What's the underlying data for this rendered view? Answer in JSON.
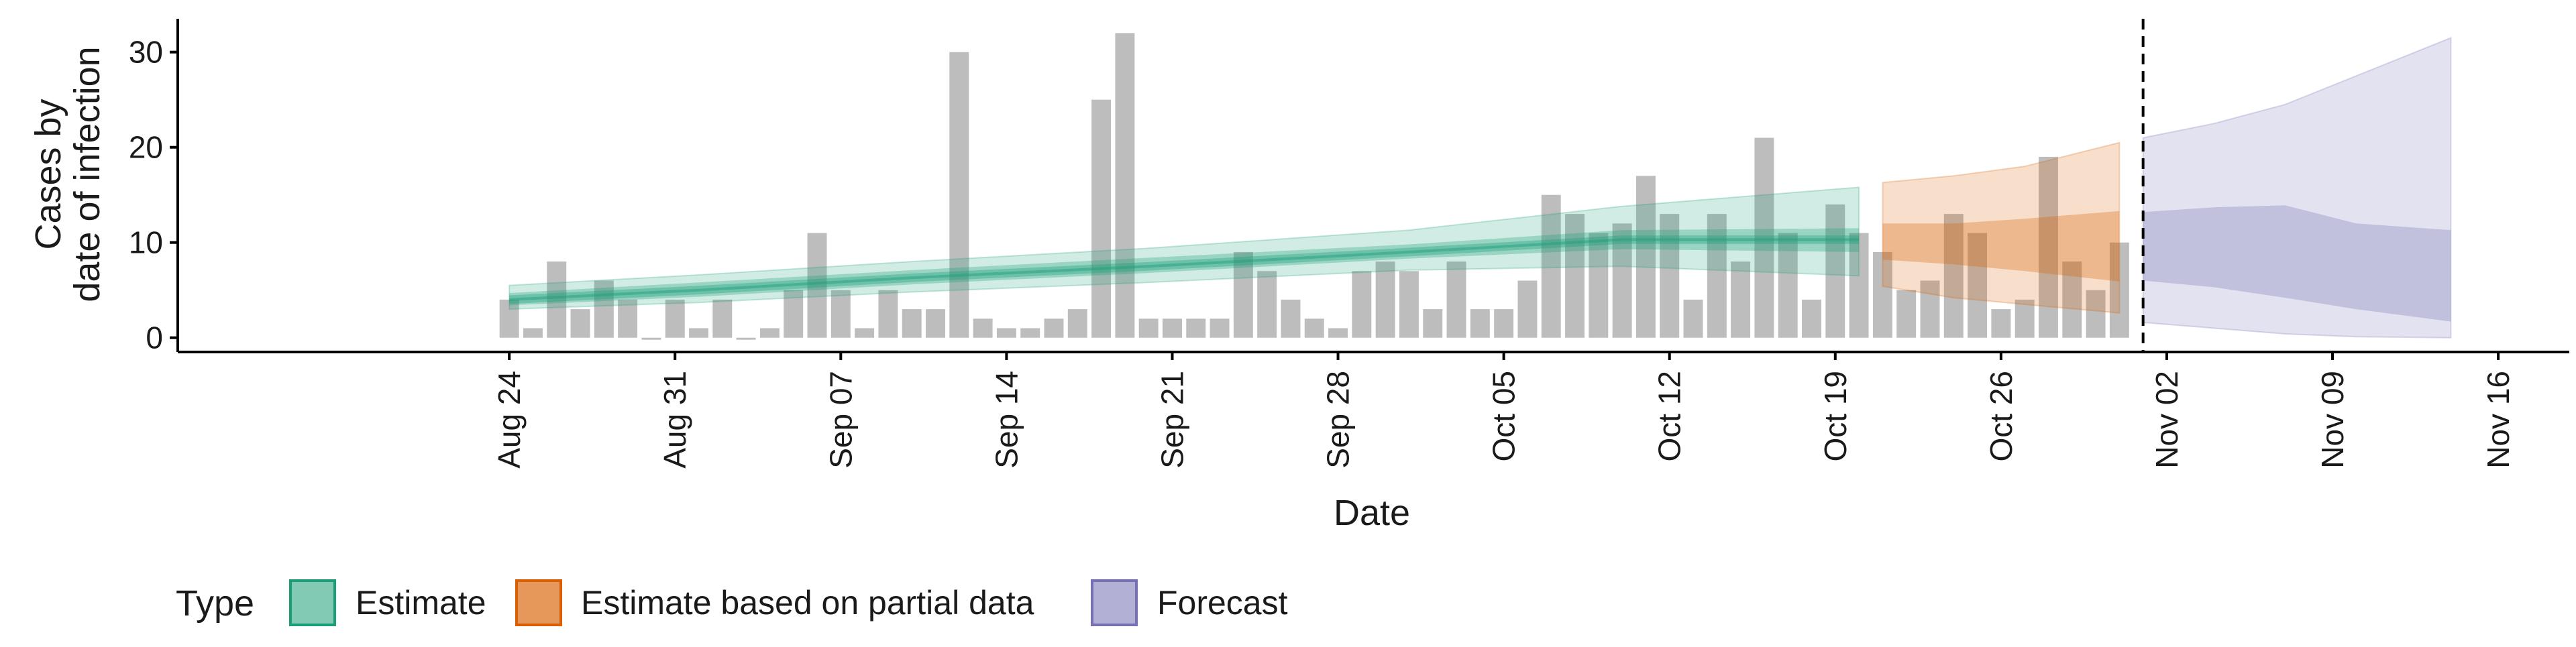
{
  "chart_data": {
    "type": "bar",
    "xlabel": "Date",
    "ylabel_lines": [
      "Cases by",
      "date of infection"
    ],
    "ylim": [
      -1.5,
      33.5
    ],
    "yticks": [
      0,
      10,
      20,
      30
    ],
    "x_range": [
      "2020-08-10",
      "2020-11-19"
    ],
    "xticks": [
      {
        "date": "2020-08-24",
        "label": "Aug 24"
      },
      {
        "date": "2020-08-31",
        "label": "Aug 31"
      },
      {
        "date": "2020-09-07",
        "label": "Sep 07"
      },
      {
        "date": "2020-09-14",
        "label": "Sep 14"
      },
      {
        "date": "2020-09-21",
        "label": "Sep 21"
      },
      {
        "date": "2020-09-28",
        "label": "Sep 28"
      },
      {
        "date": "2020-10-05",
        "label": "Oct 05"
      },
      {
        "date": "2020-10-12",
        "label": "Oct 12"
      },
      {
        "date": "2020-10-19",
        "label": "Oct 19"
      },
      {
        "date": "2020-10-26",
        "label": "Oct 26"
      },
      {
        "date": "2020-11-02",
        "label": "Nov 02"
      },
      {
        "date": "2020-11-09",
        "label": "Nov 09"
      },
      {
        "date": "2020-11-16",
        "label": "Nov 16"
      }
    ],
    "bars": {
      "start_date": "2020-08-24",
      "color": "#bdbdbd",
      "values": [
        4,
        1,
        8,
        3,
        6,
        4,
        0,
        4,
        1,
        4,
        0,
        1,
        5,
        11,
        5,
        1,
        5,
        3,
        3,
        30,
        2,
        1,
        1,
        2,
        3,
        25,
        32,
        2,
        2,
        2,
        2,
        9,
        7,
        4,
        2,
        1,
        7,
        8,
        7,
        3,
        8,
        3,
        3,
        6,
        15,
        13,
        11,
        12,
        17,
        13,
        4,
        13,
        8,
        21,
        11,
        4,
        14,
        11,
        9,
        5,
        6,
        13,
        11,
        3,
        4,
        19,
        8,
        5,
        10
      ]
    },
    "cutoff_date": "2020-11-01",
    "legend_title": "Type",
    "legend_position": "bottom",
    "series": [
      {
        "name": "Estimate",
        "color": "#1b9e77",
        "x": [
          "2020-08-24",
          "2020-09-01",
          "2020-09-10",
          "2020-09-20",
          "2020-10-01",
          "2020-10-10",
          "2020-10-20"
        ],
        "median": [
          4.0,
          5.0,
          6.3,
          7.5,
          9.0,
          10.3,
          10.3
        ],
        "lower_50": [
          3.4,
          4.3,
          5.6,
          6.8,
          8.3,
          9.3,
          9.0
        ],
        "upper_50": [
          4.7,
          5.8,
          7.1,
          8.4,
          9.8,
          11.3,
          11.5
        ],
        "lower_90": [
          3.0,
          3.7,
          4.8,
          5.8,
          7.1,
          7.5,
          6.5
        ],
        "upper_90": [
          5.5,
          6.6,
          8.0,
          9.4,
          11.3,
          13.8,
          15.8
        ]
      },
      {
        "name": "Estimate based on partial data",
        "color": "#d95f02",
        "x": [
          "2020-10-21",
          "2020-10-24",
          "2020-10-27",
          "2020-10-31"
        ],
        "median": [
          10.0,
          9.7,
          9.2,
          8.3
        ],
        "lower_50": [
          8.2,
          7.7,
          7.0,
          5.9
        ],
        "upper_50": [
          12.0,
          12.0,
          12.5,
          13.3
        ],
        "lower_90": [
          5.4,
          4.2,
          3.5,
          2.6
        ],
        "upper_90": [
          16.3,
          17.0,
          18.0,
          20.5
        ]
      },
      {
        "name": "Forecast",
        "color": "#7570b3",
        "x": [
          "2020-11-01",
          "2020-11-04",
          "2020-11-07",
          "2020-11-10",
          "2020-11-14"
        ],
        "median": [
          8.6,
          8.2,
          7.2,
          6.2,
          4.6
        ],
        "lower_50": [
          6.0,
          5.3,
          4.2,
          3.0,
          1.7
        ],
        "upper_50": [
          13.2,
          13.7,
          13.9,
          12.0,
          11.3
        ],
        "lower_90": [
          1.6,
          1.0,
          0.4,
          0.1,
          0.0
        ],
        "upper_90": [
          21.0,
          22.5,
          24.5,
          27.5,
          31.5
        ]
      }
    ]
  }
}
